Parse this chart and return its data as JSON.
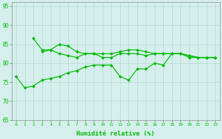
{
  "x": [
    0,
    1,
    2,
    3,
    4,
    5,
    6,
    7,
    8,
    9,
    10,
    11,
    12,
    13,
    14,
    15,
    16,
    17,
    18,
    19,
    20,
    21,
    22,
    23
  ],
  "line_max": [
    null,
    null,
    86.5,
    83.5,
    83.5,
    85.0,
    84.5,
    83.0,
    82.5,
    82.5,
    82.5,
    82.5,
    83.0,
    83.5,
    83.5,
    83.0,
    82.5,
    82.5,
    82.5,
    82.5,
    81.5,
    81.5,
    81.5,
    81.5
  ],
  "line_mean": [
    null,
    null,
    null,
    83.0,
    83.5,
    82.5,
    82.0,
    81.5,
    82.5,
    82.5,
    81.5,
    81.5,
    82.5,
    82.5,
    82.5,
    82.0,
    82.5,
    82.5,
    82.5,
    82.5,
    82.0,
    81.5,
    81.5,
    81.5
  ],
  "line_min": [
    76.5,
    73.5,
    74.0,
    75.5,
    76.0,
    76.5,
    77.5,
    78.0,
    79.0,
    79.5,
    79.5,
    79.5,
    76.5,
    75.5,
    78.5,
    78.5,
    80.0,
    79.5,
    82.5,
    82.5,
    82.0,
    81.5,
    81.5,
    81.5
  ],
  "xlim": [
    -0.5,
    23.5
  ],
  "ylim": [
    65,
    96
  ],
  "yticks": [
    65,
    70,
    75,
    80,
    85,
    90,
    95
  ],
  "xticks": [
    0,
    1,
    2,
    3,
    4,
    5,
    6,
    7,
    8,
    9,
    10,
    11,
    12,
    13,
    14,
    15,
    16,
    17,
    18,
    19,
    20,
    21,
    22,
    23
  ],
  "xlabel": "Humidité relative (%)",
  "line_color": "#00bb00",
  "bg_color": "#d5efed",
  "grid_color": "#b0d8d0",
  "marker": "D",
  "marker_size": 2.0,
  "linewidth": 0.9
}
